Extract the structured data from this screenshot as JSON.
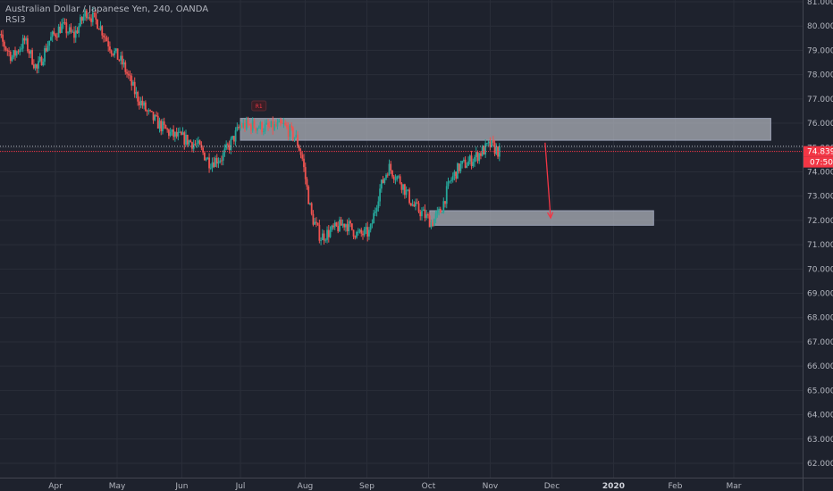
{
  "header": {
    "title": "Australian Dollar / Japanese Yen, 240, OANDA",
    "indicator": "RSI3"
  },
  "colors": {
    "background": "#1e222d",
    "grid": "#2a2e39",
    "up": "#26a69a",
    "down": "#ef5350",
    "price_line": "#f23645",
    "zone_fill": "#b2b5be",
    "arrow": "#f23645"
  },
  "chart_data": {
    "type": "candlestick",
    "symbol": "AUDJPY",
    "timeframe": "240",
    "source": "OANDA",
    "ylim": [
      61.5,
      81.3
    ],
    "y_ticks": [
      "62.000",
      "63.000",
      "64.000",
      "65.000",
      "66.000",
      "67.000",
      "68.000",
      "69.000",
      "70.000",
      "71.000",
      "72.000",
      "73.000",
      "74.000",
      "75.000",
      "76.000",
      "77.000",
      "78.000",
      "79.000",
      "80.000",
      "81.000"
    ],
    "x_ticks": [
      {
        "label": "Apr",
        "t": 2.0
      },
      {
        "label": "May",
        "t": 3.0
      },
      {
        "label": "Jun",
        "t": 4.05
      },
      {
        "label": "Jul",
        "t": 5.0
      },
      {
        "label": "Aug",
        "t": 6.05
      },
      {
        "label": "Sep",
        "t": 7.05
      },
      {
        "label": "Oct",
        "t": 8.05
      },
      {
        "label": "Nov",
        "t": 9.05
      },
      {
        "label": "Dec",
        "t": 10.05
      },
      {
        "label": "2020",
        "t": 11.05,
        "bold": true
      },
      {
        "label": "Feb",
        "t": 12.05
      },
      {
        "label": "Mar",
        "t": 13.0
      }
    ],
    "price_path": [
      [
        1.1,
        79.5
      ],
      [
        1.3,
        78.7
      ],
      [
        1.5,
        79.4
      ],
      [
        1.7,
        78.2
      ],
      [
        1.9,
        79.4
      ],
      [
        2.1,
        80.0
      ],
      [
        2.3,
        79.6
      ],
      [
        2.5,
        80.6
      ],
      [
        2.7,
        80.1
      ],
      [
        2.9,
        79.1
      ],
      [
        3.1,
        78.4
      ],
      [
        3.3,
        77.2
      ],
      [
        3.5,
        76.4
      ],
      [
        3.7,
        75.9
      ],
      [
        3.9,
        75.5
      ],
      [
        4.05,
        75.4
      ],
      [
        4.3,
        75.1
      ],
      [
        4.5,
        74.4
      ],
      [
        4.7,
        74.6
      ],
      [
        4.85,
        75.2
      ],
      [
        5.0,
        75.9
      ],
      [
        5.2,
        75.9
      ],
      [
        5.45,
        75.8
      ],
      [
        5.7,
        75.9
      ],
      [
        5.9,
        75.4
      ],
      [
        6.0,
        74.6
      ],
      [
        6.08,
        73.3
      ],
      [
        6.15,
        72.2
      ],
      [
        6.3,
        71.3
      ],
      [
        6.5,
        71.6
      ],
      [
        6.7,
        71.9
      ],
      [
        6.9,
        71.4
      ],
      [
        7.1,
        71.5
      ],
      [
        7.25,
        73.2
      ],
      [
        7.4,
        74.2
      ],
      [
        7.6,
        73.6
      ],
      [
        7.8,
        72.6
      ],
      [
        7.95,
        72.3
      ],
      [
        8.1,
        71.9
      ],
      [
        8.25,
        72.4
      ],
      [
        8.4,
        73.6
      ],
      [
        8.55,
        74.2
      ],
      [
        8.7,
        74.4
      ],
      [
        8.9,
        74.8
      ],
      [
        9.05,
        75.1
      ],
      [
        9.2,
        74.8
      ]
    ],
    "candle_count": 330,
    "zones": [
      {
        "t1": 5.0,
        "t2": 13.6,
        "y1": 75.3,
        "y2": 76.2
      },
      {
        "t1": 8.07,
        "t2": 11.7,
        "y1": 71.8,
        "y2": 72.4
      }
    ],
    "arrow": {
      "from": [
        9.94,
        75.2
      ],
      "to": [
        10.03,
        72.1
      ]
    },
    "annotation": {
      "label": "R1",
      "t": 5.3,
      "y": 76.7
    },
    "last_price": "74.839",
    "last_price_value": 74.839,
    "countdown": "07:50",
    "dotted_line_value": 75.05
  }
}
